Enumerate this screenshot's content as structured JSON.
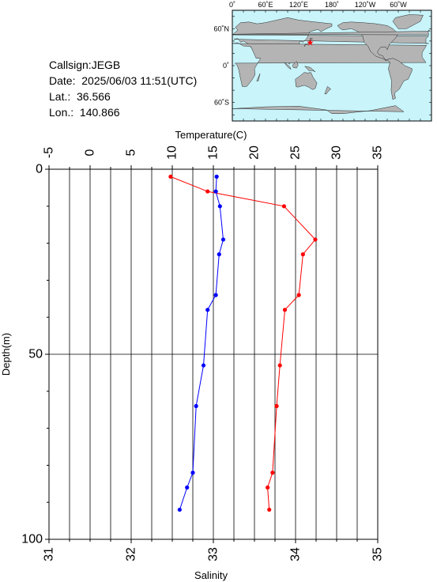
{
  "header": {
    "callsign": "Callsign:JEGB",
    "date": "Date:  2025/06/03 11:51(UTC)",
    "lat": "Lat.:  36.566",
    "lon": "Lon.:  140.866"
  },
  "map": {
    "top_ticks": [
      "0˚",
      "60˚E",
      "120˚E",
      "180˚",
      "120˚W",
      "60˚W"
    ],
    "left_ticks": [
      "60˚N",
      "0˚",
      "60˚S"
    ],
    "station": {
      "lat": 36.566,
      "lon": 140.866
    },
    "colors": {
      "ocean": "#c8f4fa",
      "land": "#b4b4b4",
      "marker": "#ff0000"
    }
  },
  "chart_data": {
    "type": "line",
    "ylabel": "Depth(m)",
    "y_axis_top": "Temperature(C)",
    "x_axis_bottom": "Salinity",
    "ylim": [
      0,
      100
    ],
    "y_ticks": [
      "0",
      "50",
      "100"
    ],
    "temperature_xlim": [
      -5,
      35
    ],
    "temperature_ticks": [
      "-5",
      "0",
      "5",
      "10",
      "15",
      "20",
      "25",
      "30",
      "35"
    ],
    "salinity_xlim": [
      31,
      35
    ],
    "salinity_ticks": [
      "31",
      "32",
      "33",
      "34",
      "35"
    ],
    "grid": true,
    "series": [
      {
        "key": "temperature",
        "color": "#ff0000",
        "axis": "top",
        "depth": [
          2,
          6,
          10,
          19,
          23,
          34,
          38,
          53,
          64,
          82,
          86,
          92
        ],
        "values": [
          9.8,
          14.3,
          23.6,
          27.4,
          25.9,
          25.4,
          23.7,
          23.1,
          22.7,
          22.2,
          21.6,
          21.8
        ]
      },
      {
        "key": "salinity",
        "color": "#0000ff",
        "axis": "bottom",
        "depth": [
          2,
          6,
          10,
          19,
          23,
          34,
          38,
          53,
          64,
          82,
          86,
          92
        ],
        "values": [
          33.04,
          33.03,
          33.08,
          33.12,
          33.07,
          33.03,
          32.93,
          32.88,
          32.79,
          32.75,
          32.68,
          32.59
        ]
      }
    ]
  }
}
